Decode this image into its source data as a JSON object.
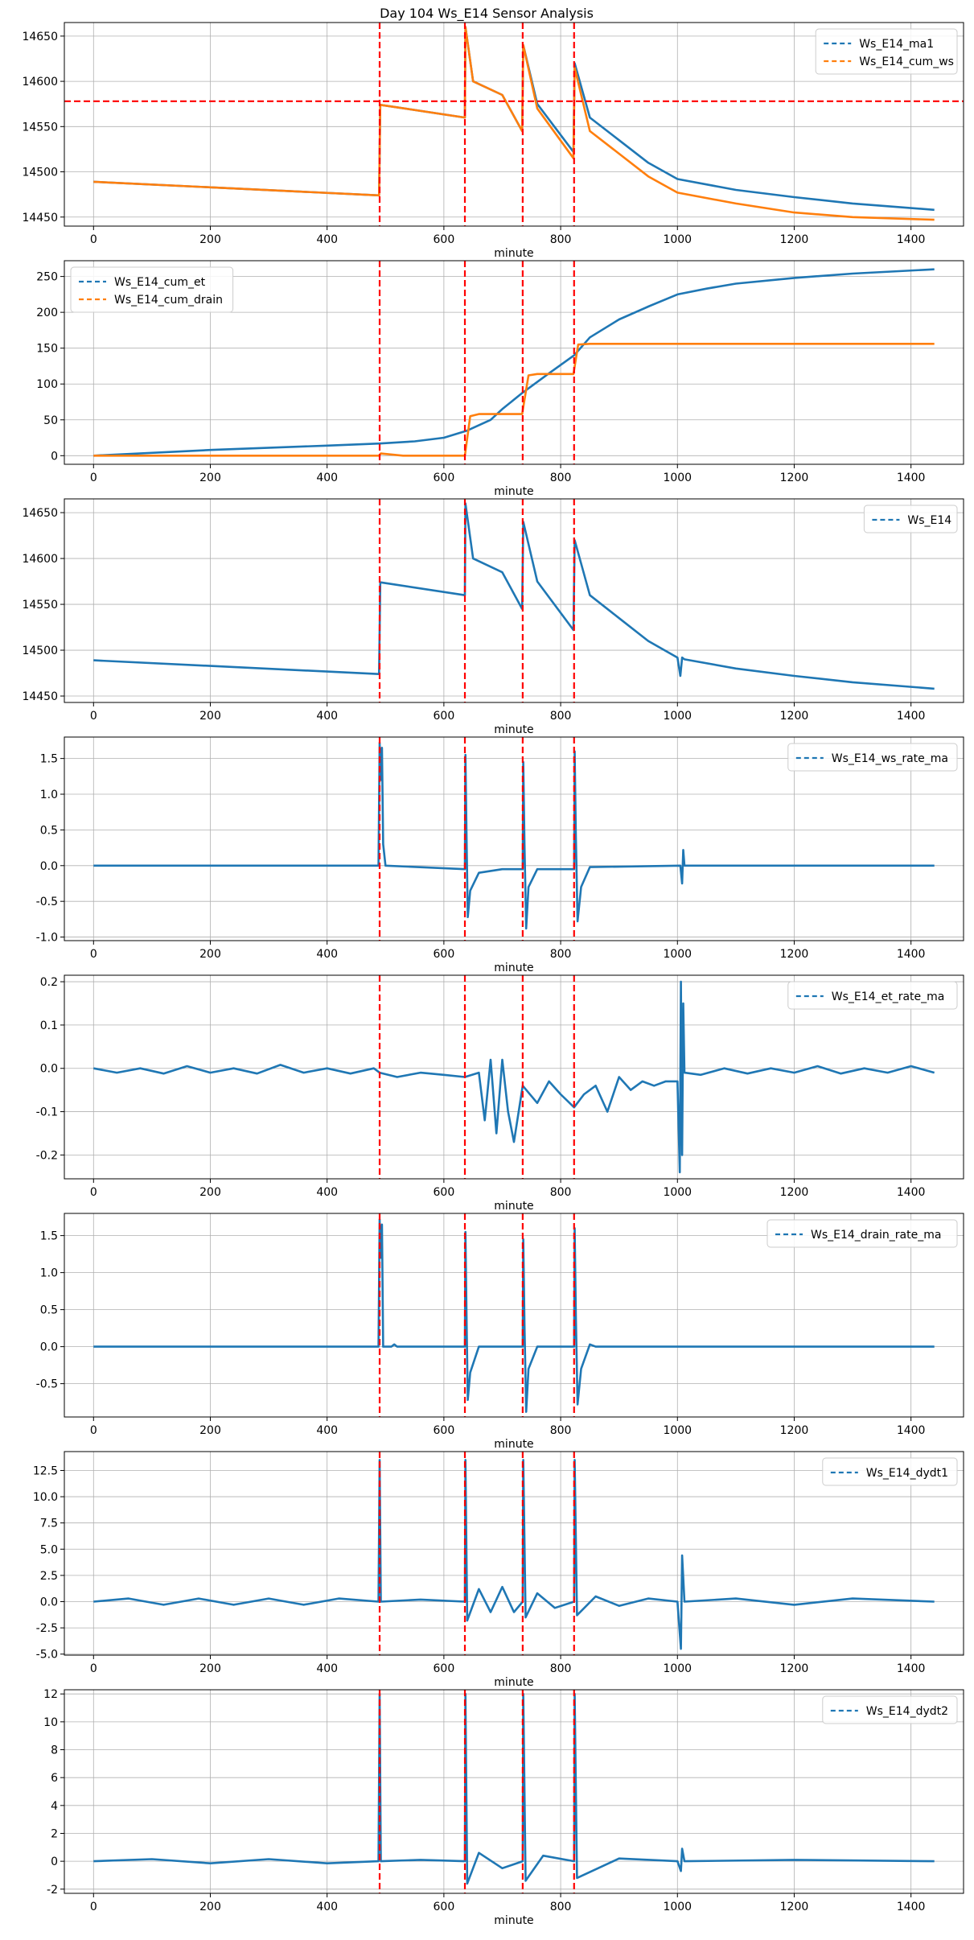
{
  "figure_title": "Day 104 Ws_E14 Sensor Analysis",
  "colors": {
    "blue": "#1f77b4",
    "orange": "#ff7f0e",
    "event": "#ff0000",
    "grid": "#b0b0b0"
  },
  "chart_data": [
    {
      "type": "line",
      "xlabel": "minute",
      "xlim": [
        -50,
        1490
      ],
      "ylim": [
        14440,
        14665
      ],
      "xticks": [
        0,
        200,
        400,
        600,
        800,
        1000,
        1200,
        1400
      ],
      "yticks": [
        14450,
        14500,
        14550,
        14600,
        14650
      ],
      "ytick_labels": [
        "14450",
        "14500",
        "14550",
        "14600",
        "14650"
      ],
      "legend_loc": "upper right",
      "vlines": [
        490,
        636,
        735,
        823
      ],
      "hlines": [
        14578
      ],
      "series": [
        {
          "name": "Ws_E14_ma1",
          "color": "#1f77b4",
          "x": [
            0,
            489,
            491,
            636,
            637,
            650,
            700,
            734,
            736,
            760,
            822,
            824,
            850,
            900,
            950,
            1000,
            1100,
            1200,
            1300,
            1440
          ],
          "y": [
            14489,
            14474,
            14574,
            14560,
            14660,
            14600,
            14585,
            14545,
            14640,
            14575,
            14522,
            14620,
            14560,
            14535,
            14510,
            14492,
            14480,
            14472,
            14465,
            14458
          ]
        },
        {
          "name": "Ws_E14_cum_ws",
          "color": "#ff7f0e",
          "x": [
            0,
            489,
            491,
            636,
            637,
            650,
            700,
            734,
            736,
            760,
            822,
            824,
            850,
            900,
            950,
            1000,
            1100,
            1200,
            1300,
            1440
          ],
          "y": [
            14489,
            14474,
            14574,
            14560,
            14660,
            14600,
            14585,
            14545,
            14640,
            14570,
            14515,
            14615,
            14545,
            14520,
            14495,
            14477,
            14465,
            14455,
            14450,
            14447
          ]
        }
      ]
    },
    {
      "type": "line",
      "xlabel": "minute",
      "xlim": [
        -50,
        1490
      ],
      "ylim": [
        -12,
        272
      ],
      "xticks": [
        0,
        200,
        400,
        600,
        800,
        1000,
        1200,
        1400
      ],
      "yticks": [
        0,
        50,
        100,
        150,
        200,
        250
      ],
      "ytick_labels": [
        "0",
        "50",
        "100",
        "150",
        "200",
        "250"
      ],
      "legend_loc": "upper left",
      "vlines": [
        490,
        636,
        735,
        823
      ],
      "hlines": [],
      "series": [
        {
          "name": "Ws_E14_cum_et",
          "color": "#1f77b4",
          "x": [
            0,
            200,
            400,
            490,
            550,
            600,
            640,
            680,
            700,
            735,
            780,
            823,
            850,
            900,
            950,
            1000,
            1050,
            1100,
            1200,
            1300,
            1440
          ],
          "y": [
            0,
            8,
            14,
            17,
            20,
            25,
            35,
            50,
            65,
            88,
            115,
            140,
            165,
            190,
            208,
            225,
            233,
            240,
            248,
            254,
            260
          ]
        },
        {
          "name": "Ws_E14_cum_drain",
          "color": "#ff7f0e",
          "x": [
            0,
            489,
            492,
            530,
            636,
            645,
            660,
            734,
            745,
            760,
            822,
            830,
            850,
            1440
          ],
          "y": [
            0,
            0,
            3,
            0,
            0,
            55,
            58,
            58,
            112,
            114,
            114,
            155,
            156,
            156
          ]
        }
      ]
    },
    {
      "type": "line",
      "xlabel": "minute",
      "xlim": [
        -50,
        1490
      ],
      "ylim": [
        14443,
        14665
      ],
      "xticks": [
        0,
        200,
        400,
        600,
        800,
        1000,
        1200,
        1400
      ],
      "yticks": [
        14450,
        14500,
        14550,
        14600,
        14650
      ],
      "ytick_labels": [
        "14450",
        "14500",
        "14550",
        "14600",
        "14650"
      ],
      "legend_loc": "upper right",
      "vlines": [
        490,
        636,
        735,
        823
      ],
      "hlines": [],
      "series": [
        {
          "name": "Ws_E14",
          "color": "#1f77b4",
          "x": [
            0,
            489,
            491,
            636,
            637,
            650,
            700,
            734,
            736,
            760,
            822,
            824,
            850,
            900,
            950,
            1000,
            1005,
            1008,
            1012,
            1100,
            1200,
            1300,
            1440
          ],
          "y": [
            14489,
            14474,
            14574,
            14560,
            14660,
            14600,
            14585,
            14545,
            14640,
            14575,
            14522,
            14620,
            14560,
            14535,
            14510,
            14492,
            14472,
            14492,
            14490,
            14480,
            14472,
            14465,
            14458
          ]
        }
      ]
    },
    {
      "type": "line",
      "xlabel": "minute",
      "xlim": [
        -50,
        1490
      ],
      "ylim": [
        -1.05,
        1.8
      ],
      "xticks": [
        0,
        200,
        400,
        600,
        800,
        1000,
        1200,
        1400
      ],
      "yticks": [
        -1.0,
        -0.5,
        0.0,
        0.5,
        1.0,
        1.5
      ],
      "ytick_labels": [
        "-1.0",
        "-0.5",
        "0.0",
        "0.5",
        "1.0",
        "1.5"
      ],
      "legend_loc": "upper right",
      "vlines": [
        490,
        636,
        735,
        823
      ],
      "hlines": [],
      "series": [
        {
          "name": "Ws_E14_ws_rate_ma",
          "color": "#1f77b4",
          "x": [
            0,
            488,
            490,
            492,
            494,
            496,
            500,
            636,
            637,
            639,
            641,
            645,
            660,
            700,
            735,
            736,
            738,
            741,
            745,
            760,
            823,
            824,
            826,
            829,
            835,
            850,
            1005,
            1008,
            1010,
            1012,
            1014,
            1440
          ],
          "y": [
            0,
            0,
            1.72,
            1.2,
            1.65,
            0.3,
            0,
            -0.05,
            1.55,
            0.3,
            -0.72,
            -0.35,
            -0.1,
            -0.05,
            -0.05,
            1.45,
            0.3,
            -0.88,
            -0.3,
            -0.05,
            -0.05,
            1.6,
            0.4,
            -0.78,
            -0.3,
            -0.02,
            0,
            -0.25,
            0.22,
            0,
            0,
            0
          ]
        }
      ]
    },
    {
      "type": "line",
      "xlabel": "minute",
      "xlim": [
        -50,
        1490
      ],
      "ylim": [
        -0.255,
        0.215
      ],
      "xticks": [
        0,
        200,
        400,
        600,
        800,
        1000,
        1200,
        1400
      ],
      "yticks": [
        -0.2,
        -0.1,
        0.0,
        0.1,
        0.2
      ],
      "ytick_labels": [
        "-0.2",
        "-0.1",
        "0.0",
        "0.1",
        "0.2"
      ],
      "legend_loc": "upper right",
      "vlines": [
        490,
        636,
        735,
        823
      ],
      "hlines": [],
      "series": [
        {
          "name": "Ws_E14_et_rate_ma",
          "color": "#1f77b4",
          "x": [
            0,
            40,
            80,
            120,
            160,
            200,
            240,
            280,
            320,
            360,
            400,
            440,
            480,
            490,
            520,
            560,
            600,
            636,
            660,
            670,
            680,
            690,
            700,
            710,
            720,
            735,
            760,
            780,
            800,
            823,
            840,
            860,
            880,
            900,
            920,
            940,
            960,
            980,
            1000,
            1004,
            1006,
            1008,
            1010,
            1012,
            1040,
            1080,
            1120,
            1160,
            1200,
            1240,
            1280,
            1320,
            1360,
            1400,
            1440
          ],
          "y": [
            0,
            -0.01,
            0,
            -0.012,
            0.005,
            -0.01,
            0,
            -0.012,
            0.008,
            -0.01,
            0,
            -0.012,
            0,
            -0.01,
            -0.02,
            -0.01,
            -0.015,
            -0.02,
            -0.01,
            -0.12,
            0.02,
            -0.15,
            0.02,
            -0.1,
            -0.17,
            -0.04,
            -0.08,
            -0.03,
            -0.06,
            -0.09,
            -0.06,
            -0.04,
            -0.1,
            -0.02,
            -0.05,
            -0.03,
            -0.04,
            -0.03,
            -0.03,
            -0.24,
            0.2,
            -0.2,
            0.15,
            -0.01,
            -0.015,
            0,
            -0.012,
            0,
            -0.01,
            0.005,
            -0.012,
            0,
            -0.01,
            0.005,
            -0.01
          ]
        }
      ]
    },
    {
      "type": "line",
      "xlabel": "minute",
      "xlim": [
        -50,
        1490
      ],
      "ylim": [
        -0.95,
        1.8
      ],
      "xticks": [
        0,
        200,
        400,
        600,
        800,
        1000,
        1200,
        1400
      ],
      "yticks": [
        -0.5,
        0.0,
        0.5,
        1.0,
        1.5
      ],
      "ytick_labels": [
        "-0.5",
        "0.0",
        "0.5",
        "1.0",
        "1.5"
      ],
      "legend_loc": "upper right",
      "vlines": [
        490,
        636,
        735,
        823
      ],
      "hlines": [],
      "series": [
        {
          "name": "Ws_E14_drain_rate_ma",
          "color": "#1f77b4",
          "x": [
            0,
            488,
            490,
            492,
            494,
            496,
            510,
            515,
            520,
            636,
            637,
            639,
            641,
            645,
            660,
            735,
            736,
            738,
            741,
            745,
            760,
            823,
            824,
            826,
            829,
            835,
            850,
            860,
            1440
          ],
          "y": [
            0,
            0,
            1.72,
            1.2,
            1.65,
            0,
            0,
            0.03,
            0,
            0,
            1.55,
            0.3,
            -0.72,
            -0.35,
            0,
            0,
            1.45,
            0.3,
            -0.88,
            -0.3,
            0,
            0,
            1.6,
            0.4,
            -0.78,
            -0.3,
            0.03,
            0,
            0
          ]
        }
      ]
    },
    {
      "type": "line",
      "xlabel": "minute",
      "xlim": [
        -50,
        1490
      ],
      "ylim": [
        -5.1,
        14.3
      ],
      "xticks": [
        0,
        200,
        400,
        600,
        800,
        1000,
        1200,
        1400
      ],
      "yticks": [
        -5.0,
        -2.5,
        0.0,
        2.5,
        5.0,
        7.5,
        10.0,
        12.5
      ],
      "ytick_labels": [
        "-5.0",
        "-2.5",
        "0.0",
        "2.5",
        "5.0",
        "7.5",
        "10.0",
        "12.5"
      ],
      "legend_loc": "upper right",
      "vlines": [
        490,
        636,
        735,
        823
      ],
      "hlines": [],
      "series": [
        {
          "name": "Ws_E14_dydt1",
          "color": "#1f77b4",
          "x": [
            0,
            60,
            120,
            180,
            240,
            300,
            360,
            420,
            488,
            490,
            492,
            560,
            636,
            637,
            640,
            660,
            680,
            700,
            720,
            735,
            736,
            740,
            760,
            790,
            823,
            824,
            828,
            860,
            900,
            950,
            1000,
            1006,
            1008,
            1012,
            1100,
            1200,
            1300,
            1440
          ],
          "y": [
            0,
            0.3,
            -0.3,
            0.3,
            -0.3,
            0.3,
            -0.3,
            0.3,
            0,
            13.5,
            0,
            0.2,
            0,
            13.5,
            -1.8,
            1.2,
            -1.0,
            1.4,
            -1.0,
            0,
            13.5,
            -1.5,
            0.8,
            -0.6,
            0,
            13.5,
            -1.3,
            0.5,
            -0.4,
            0.3,
            0,
            -4.5,
            4.4,
            0,
            0.3,
            -0.3,
            0.3,
            0
          ]
        }
      ]
    },
    {
      "type": "line",
      "xlabel": "minute",
      "xlim": [
        -50,
        1490
      ],
      "ylim": [
        -2.3,
        12.3
      ],
      "xticks": [
        0,
        200,
        400,
        600,
        800,
        1000,
        1200,
        1400
      ],
      "yticks": [
        -2,
        0,
        2,
        4,
        6,
        8,
        10,
        12
      ],
      "ytick_labels": [
        "-2",
        "0",
        "2",
        "4",
        "6",
        "8",
        "10",
        "12"
      ],
      "legend_loc": "upper right",
      "vlines": [
        490,
        636,
        735,
        823
      ],
      "hlines": [],
      "series": [
        {
          "name": "Ws_E14_dydt2",
          "color": "#1f77b4",
          "x": [
            0,
            100,
            200,
            300,
            400,
            488,
            490,
            492,
            560,
            636,
            637,
            640,
            660,
            700,
            735,
            736,
            740,
            770,
            823,
            824,
            828,
            900,
            1000,
            1006,
            1008,
            1012,
            1200,
            1440
          ],
          "y": [
            0,
            0.15,
            -0.15,
            0.15,
            -0.15,
            0,
            12,
            0,
            0.1,
            0,
            12,
            -1.6,
            0.6,
            -0.5,
            0,
            12,
            -1.4,
            0.4,
            0,
            12,
            -1.2,
            0.2,
            0,
            -0.7,
            0.9,
            0,
            0.1,
            0
          ]
        }
      ]
    }
  ]
}
